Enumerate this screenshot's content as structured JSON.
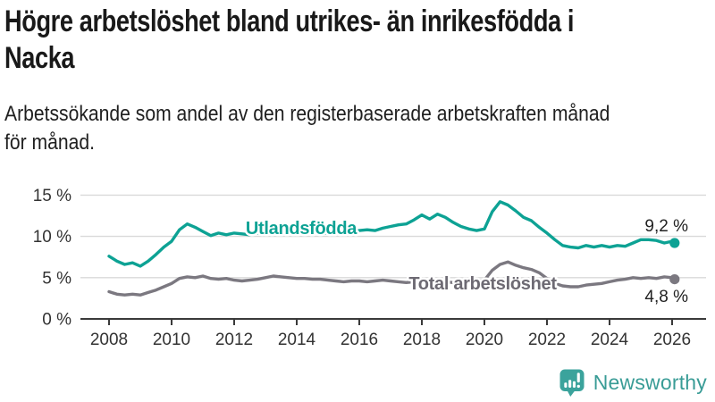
{
  "header": {
    "title_line1": "Högre arbetslöshet bland utrikes- än inrikesfödda i",
    "title_line2": "Nacka",
    "subtitle_line1": "Arbetssökande som andel av den registerbaserade arbetskraften månad",
    "subtitle_line2": "för månad."
  },
  "branding": {
    "logo_text": "Newsworthy",
    "logo_color": "#3ba39c"
  },
  "colors": {
    "series_utlandsfodda": "#0da294",
    "series_total": "#7b7880",
    "axis": "#3a3a3a",
    "grid": "#d9d9d9",
    "text": "#1a1a1a"
  },
  "chart_data": {
    "type": "line",
    "title": "Högre arbetslöshet bland utrikes- än inrikesfödda i Nacka",
    "subtitle": "Arbetssökande som andel av den registerbaserade arbetskraften månad för månad.",
    "xlabel": "",
    "ylabel": "",
    "ylim": [
      0,
      15.5
    ],
    "xlim": [
      2007.7,
      2027.1
    ],
    "grid": "horizontal",
    "legend_position": "inline-labels",
    "y_ticks": [
      {
        "v": 0,
        "label": "0 %"
      },
      {
        "v": 5,
        "label": "5 %"
      },
      {
        "v": 10,
        "label": "10 %"
      },
      {
        "v": 15,
        "label": "15 %"
      }
    ],
    "x_ticks": [
      {
        "v": 2008,
        "label": "2008"
      },
      {
        "v": 2010,
        "label": "2010"
      },
      {
        "v": 2012,
        "label": "2012"
      },
      {
        "v": 2014,
        "label": "2014"
      },
      {
        "v": 2016,
        "label": "2016"
      },
      {
        "v": 2018,
        "label": "2018"
      },
      {
        "v": 2020,
        "label": "2020"
      },
      {
        "v": 2022,
        "label": "2022"
      },
      {
        "v": 2024,
        "label": "2024"
      },
      {
        "v": 2026,
        "label": "2026"
      }
    ],
    "x": [
      2008.0,
      2008.25,
      2008.5,
      2008.75,
      2009.0,
      2009.25,
      2009.5,
      2009.75,
      2010.0,
      2010.25,
      2010.5,
      2010.75,
      2011.0,
      2011.25,
      2011.5,
      2011.75,
      2012.0,
      2012.25,
      2012.5,
      2012.75,
      2013.0,
      2013.25,
      2013.5,
      2013.75,
      2014.0,
      2014.25,
      2014.5,
      2014.75,
      2015.0,
      2015.25,
      2015.5,
      2015.75,
      2016.0,
      2016.25,
      2016.5,
      2016.75,
      2017.0,
      2017.25,
      2017.5,
      2017.75,
      2018.0,
      2018.25,
      2018.5,
      2018.75,
      2019.0,
      2019.25,
      2019.5,
      2019.75,
      2020.0,
      2020.25,
      2020.5,
      2020.75,
      2021.0,
      2021.25,
      2021.5,
      2021.75,
      2022.0,
      2022.25,
      2022.5,
      2022.75,
      2023.0,
      2023.25,
      2023.5,
      2023.75,
      2024.0,
      2024.25,
      2024.5,
      2024.75,
      2025.0,
      2025.25,
      2025.5,
      2025.75,
      2026.0,
      2026.08
    ],
    "series": [
      {
        "name": "Utlandsfödda",
        "color": "#0da294",
        "end_value": 9.2,
        "end_label": "9,2 %",
        "values": [
          7.6,
          7.0,
          6.6,
          6.8,
          6.4,
          7.0,
          7.8,
          8.7,
          9.4,
          10.8,
          11.5,
          11.1,
          10.6,
          10.1,
          10.4,
          10.2,
          10.4,
          10.3,
          10.2,
          10.4,
          10.5,
          10.6,
          10.4,
          10.5,
          10.6,
          10.4,
          10.5,
          10.3,
          10.4,
          10.3,
          10.5,
          10.6,
          10.7,
          10.8,
          10.7,
          11.0,
          11.2,
          11.4,
          11.5,
          12.0,
          12.6,
          12.1,
          12.7,
          12.3,
          11.7,
          11.2,
          10.9,
          10.7,
          10.9,
          13.0,
          14.2,
          13.8,
          13.1,
          12.3,
          11.9,
          11.1,
          10.4,
          9.6,
          8.9,
          8.7,
          8.6,
          8.9,
          8.7,
          8.9,
          8.7,
          8.9,
          8.8,
          9.2,
          9.6,
          9.6,
          9.5,
          9.2,
          9.4,
          9.2
        ]
      },
      {
        "name": "Total arbetslöshet",
        "color": "#7b7880",
        "end_value": 4.8,
        "end_label": "4,8 %",
        "values": [
          3.3,
          3.0,
          2.9,
          3.0,
          2.9,
          3.2,
          3.5,
          3.9,
          4.3,
          4.9,
          5.1,
          5.0,
          5.2,
          4.9,
          4.8,
          4.9,
          4.7,
          4.6,
          4.7,
          4.8,
          5.0,
          5.2,
          5.1,
          5.0,
          4.9,
          4.9,
          4.8,
          4.8,
          4.7,
          4.6,
          4.5,
          4.6,
          4.6,
          4.5,
          4.6,
          4.7,
          4.6,
          4.5,
          4.4,
          4.5,
          4.6,
          4.5,
          4.6,
          4.5,
          4.4,
          4.4,
          4.5,
          4.6,
          4.7,
          5.9,
          6.6,
          6.9,
          6.5,
          6.2,
          6.0,
          5.6,
          4.9,
          4.3,
          4.0,
          3.9,
          3.9,
          4.1,
          4.2,
          4.3,
          4.5,
          4.7,
          4.8,
          5.0,
          4.9,
          5.0,
          4.9,
          5.1,
          5.0,
          4.8
        ]
      }
    ]
  }
}
